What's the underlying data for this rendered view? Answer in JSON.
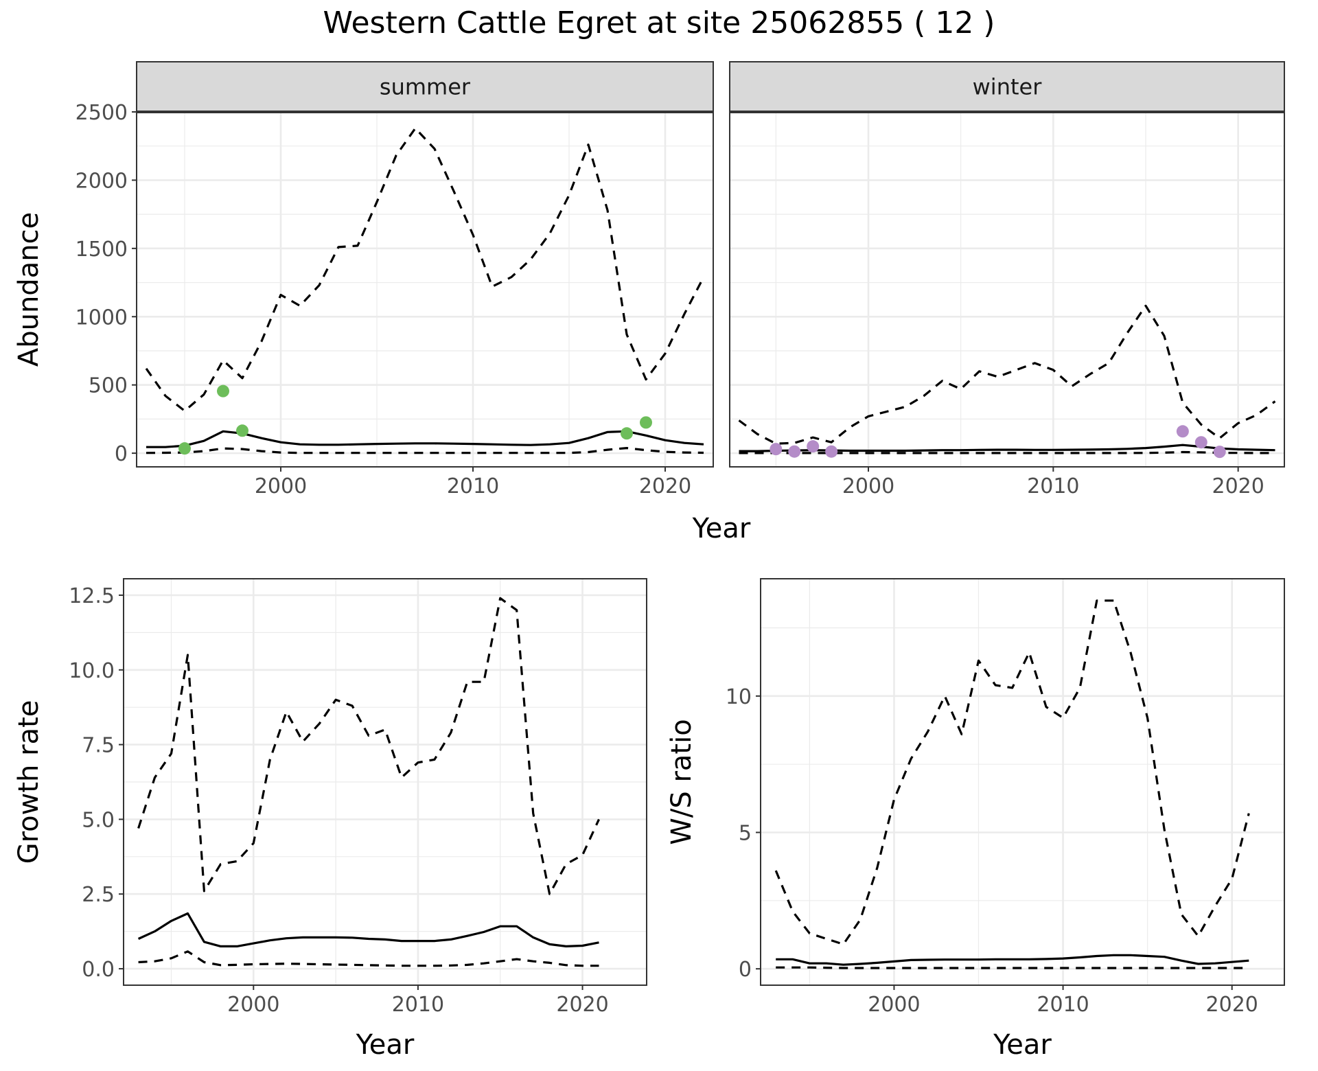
{
  "figure": {
    "title": "Western Cattle Egret at site 25062855 ( 12 )",
    "x_title_top": "Year"
  },
  "colors": {
    "summer_points": "#6dbd5a",
    "winter_points": "#b48cc8",
    "line": "#000000",
    "strip_bg": "#d9d9d9",
    "grid": "#ebebeb"
  },
  "chart_data": [
    {
      "type": "line",
      "panel": "summer",
      "strip_label": "summer",
      "ylabel": "Abundance",
      "xlim": [
        1992.5,
        2022.5
      ],
      "ylim": [
        -100,
        2500
      ],
      "xticks": [
        2000,
        2010,
        2020
      ],
      "yticks": [
        0,
        500,
        1000,
        1500,
        2000,
        2500
      ],
      "grid": true,
      "series": [
        {
          "style": "solid",
          "x": [
            1993,
            1994,
            1995,
            1996,
            1997,
            1998,
            1999,
            2000,
            2001,
            2002,
            2003,
            2004,
            2005,
            2006,
            2007,
            2008,
            2009,
            2010,
            2011,
            2012,
            2013,
            2014,
            2015,
            2016,
            2017,
            2018,
            2019,
            2020,
            2021,
            2022
          ],
          "y": [
            45,
            45,
            55,
            90,
            160,
            145,
            110,
            80,
            65,
            62,
            62,
            65,
            68,
            70,
            72,
            72,
            70,
            68,
            65,
            62,
            60,
            65,
            75,
            110,
            155,
            160,
            130,
            95,
            75,
            65
          ]
        },
        {
          "style": "dashed",
          "x": [
            1993,
            1994,
            1995,
            1996,
            1997,
            1998,
            1999,
            2000,
            2001,
            2002,
            2003,
            2004,
            2005,
            2006,
            2007,
            2008,
            2009,
            2010,
            2011,
            2012,
            2013,
            2014,
            2015,
            2016,
            2017,
            2018,
            2019,
            2020,
            2021,
            2022
          ],
          "y": [
            620,
            420,
            310,
            430,
            680,
            550,
            820,
            1160,
            1080,
            1230,
            1510,
            1520,
            1840,
            2180,
            2380,
            2230,
            1920,
            1600,
            1220,
            1290,
            1420,
            1610,
            1890,
            2260,
            1780,
            870,
            540,
            730,
            1020,
            1290
          ]
        },
        {
          "style": "dashed",
          "x": [
            1993,
            1994,
            1995,
            1996,
            1997,
            1998,
            1999,
            2000,
            2001,
            2002,
            2003,
            2004,
            2005,
            2006,
            2007,
            2008,
            2009,
            2010,
            2011,
            2012,
            2013,
            2014,
            2015,
            2016,
            2017,
            2018,
            2019,
            2020,
            2021,
            2022
          ],
          "y": [
            2,
            3,
            5,
            15,
            35,
            30,
            15,
            5,
            2,
            2,
            2,
            2,
            2,
            2,
            2,
            2,
            2,
            2,
            2,
            2,
            2,
            2,
            2,
            8,
            25,
            38,
            22,
            10,
            5,
            3
          ]
        }
      ],
      "points": {
        "x": [
          1995,
          1997,
          1998,
          2018,
          2019
        ],
        "y": [
          35,
          455,
          165,
          145,
          225
        ]
      }
    },
    {
      "type": "line",
      "panel": "winter",
      "strip_label": "winter",
      "xlim": [
        1992.5,
        2022.5
      ],
      "ylim": [
        -100,
        2500
      ],
      "xticks": [
        2000,
        2010,
        2020
      ],
      "yticks": [
        0,
        500,
        1000,
        1500,
        2000,
        2500
      ],
      "grid": true,
      "series": [
        {
          "style": "solid",
          "x": [
            1993,
            1994,
            1995,
            1996,
            1997,
            1998,
            1999,
            2000,
            2001,
            2002,
            2003,
            2004,
            2005,
            2006,
            2007,
            2008,
            2009,
            2010,
            2011,
            2012,
            2013,
            2014,
            2015,
            2016,
            2017,
            2018,
            2019,
            2020,
            2021,
            2022
          ],
          "y": [
            15,
            15,
            18,
            20,
            22,
            20,
            18,
            18,
            18,
            18,
            20,
            22,
            22,
            24,
            25,
            25,
            24,
            24,
            25,
            26,
            28,
            32,
            38,
            48,
            60,
            48,
            35,
            28,
            25,
            22
          ]
        },
        {
          "style": "dashed",
          "x": [
            1993,
            1994,
            1995,
            1996,
            1997,
            1998,
            1999,
            2000,
            2001,
            2002,
            2003,
            2004,
            2005,
            2006,
            2007,
            2008,
            2009,
            2010,
            2011,
            2012,
            2013,
            2014,
            2015,
            2016,
            2017,
            2018,
            2019,
            2020,
            2021,
            2022
          ],
          "y": [
            240,
            140,
            70,
            75,
            115,
            80,
            190,
            270,
            305,
            340,
            420,
            530,
            470,
            600,
            560,
            610,
            660,
            610,
            490,
            580,
            660,
            880,
            1080,
            860,
            370,
            210,
            110,
            220,
            280,
            380
          ]
        },
        {
          "style": "dashed",
          "x": [
            1993,
            1994,
            1995,
            1996,
            1997,
            1998,
            1999,
            2000,
            2001,
            2002,
            2003,
            2004,
            2005,
            2006,
            2007,
            2008,
            2009,
            2010,
            2011,
            2012,
            2013,
            2014,
            2015,
            2016,
            2017,
            2018,
            2019,
            2020,
            2021,
            2022
          ],
          "y": [
            1,
            1,
            1,
            1,
            1,
            1,
            1,
            1,
            1,
            1,
            1,
            1,
            1,
            1,
            1,
            1,
            1,
            1,
            1,
            1,
            1,
            1,
            2,
            4,
            8,
            6,
            3,
            2,
            1,
            1
          ]
        }
      ],
      "points": {
        "x": [
          1995,
          1996,
          1997,
          1998,
          2017,
          2018,
          2019
        ],
        "y": [
          30,
          12,
          50,
          12,
          160,
          80,
          10
        ]
      }
    },
    {
      "type": "line",
      "panel": "growth",
      "xlabel": "Year",
      "ylabel": "Growth rate",
      "xlim": [
        1992.1,
        2023.9
      ],
      "ylim": [
        -0.55,
        13.05
      ],
      "xticks": [
        2000,
        2010,
        2020
      ],
      "yticks": [
        0.0,
        2.5,
        5.0,
        7.5,
        10.0,
        12.5
      ],
      "ytick_labels": [
        "0.0",
        "2.5",
        "5.0",
        "7.5",
        "10.0",
        "12.5"
      ],
      "grid": true,
      "series": [
        {
          "style": "solid",
          "x": [
            1993,
            1994,
            1995,
            1996,
            1997,
            1998,
            1999,
            2000,
            2001,
            2002,
            2003,
            2004,
            2005,
            2006,
            2007,
            2008,
            2009,
            2010,
            2011,
            2012,
            2013,
            2014,
            2015,
            2016,
            2017,
            2018,
            2019,
            2020,
            2021
          ],
          "y": [
            1.0,
            1.25,
            1.6,
            1.85,
            0.9,
            0.75,
            0.75,
            0.85,
            0.95,
            1.02,
            1.05,
            1.05,
            1.05,
            1.04,
            1.0,
            0.98,
            0.93,
            0.93,
            0.93,
            0.98,
            1.1,
            1.23,
            1.42,
            1.42,
            1.05,
            0.82,
            0.75,
            0.77,
            0.88
          ]
        },
        {
          "style": "dashed",
          "x": [
            1993,
            1994,
            1995,
            1996,
            1997,
            1998,
            1999,
            2000,
            2001,
            2002,
            2003,
            2004,
            2005,
            2006,
            2007,
            2008,
            2009,
            2010,
            2011,
            2012,
            2013,
            2014,
            2015,
            2016,
            2017,
            2018,
            2019,
            2020,
            2021
          ],
          "y": [
            4.7,
            6.4,
            7.2,
            10.5,
            2.6,
            3.5,
            3.6,
            4.2,
            7.0,
            8.6,
            7.6,
            8.2,
            9.0,
            8.8,
            7.8,
            8.0,
            6.4,
            6.9,
            7.0,
            7.9,
            9.6,
            9.6,
            12.4,
            12.0,
            5.2,
            2.5,
            3.5,
            3.8,
            5.0
          ]
        },
        {
          "style": "dashed",
          "x": [
            1993,
            1994,
            1995,
            1996,
            1997,
            1998,
            1999,
            2000,
            2001,
            2002,
            2003,
            2004,
            2005,
            2006,
            2007,
            2008,
            2009,
            2010,
            2011,
            2012,
            2013,
            2014,
            2015,
            2016,
            2017,
            2018,
            2019,
            2020,
            2021
          ],
          "y": [
            0.22,
            0.25,
            0.35,
            0.58,
            0.22,
            0.12,
            0.13,
            0.15,
            0.16,
            0.17,
            0.16,
            0.15,
            0.14,
            0.13,
            0.12,
            0.11,
            0.1,
            0.1,
            0.1,
            0.11,
            0.13,
            0.18,
            0.25,
            0.32,
            0.25,
            0.2,
            0.12,
            0.1,
            0.1
          ]
        }
      ]
    },
    {
      "type": "line",
      "panel": "ratio",
      "xlabel": "Year",
      "ylabel": "W/S ratio",
      "xlim": [
        1992.1,
        2023.1
      ],
      "ylim": [
        -0.6,
        14.3
      ],
      "xticks": [
        2000,
        2010,
        2020
      ],
      "yticks": [
        0,
        5,
        10
      ],
      "grid": true,
      "series": [
        {
          "style": "solid",
          "x": [
            1993,
            1994,
            1995,
            1996,
            1997,
            1998,
            1999,
            2000,
            2001,
            2002,
            2003,
            2004,
            2005,
            2006,
            2007,
            2008,
            2009,
            2010,
            2011,
            2012,
            2013,
            2014,
            2015,
            2016,
            2017,
            2018,
            2019,
            2020,
            2021
          ],
          "y": [
            0.35,
            0.35,
            0.2,
            0.2,
            0.15,
            0.18,
            0.22,
            0.27,
            0.32,
            0.33,
            0.34,
            0.34,
            0.34,
            0.35,
            0.35,
            0.35,
            0.36,
            0.38,
            0.42,
            0.47,
            0.5,
            0.5,
            0.47,
            0.44,
            0.3,
            0.18,
            0.2,
            0.25,
            0.3
          ]
        },
        {
          "style": "dashed",
          "x": [
            1993,
            1994,
            1995,
            1996,
            1997,
            1998,
            1999,
            2000,
            2001,
            2002,
            2003,
            2004,
            2005,
            2006,
            2007,
            2008,
            2009,
            2010,
            2011,
            2012,
            2013,
            2014,
            2015,
            2016,
            2017,
            2018,
            2019,
            2020,
            2021
          ],
          "y": [
            3.6,
            2.1,
            1.3,
            1.1,
            0.9,
            1.8,
            3.7,
            6.2,
            7.7,
            8.7,
            10.0,
            8.6,
            11.3,
            10.4,
            10.3,
            11.6,
            9.6,
            9.2,
            10.3,
            13.5,
            13.5,
            11.6,
            9.2,
            5.1,
            2.0,
            1.2,
            2.3,
            3.3,
            5.7
          ]
        },
        {
          "style": "dashed",
          "x": [
            1993,
            1994,
            1995,
            1996,
            1997,
            1998,
            1999,
            2000,
            2001,
            2002,
            2003,
            2004,
            2005,
            2006,
            2007,
            2008,
            2009,
            2010,
            2011,
            2012,
            2013,
            2014,
            2015,
            2016,
            2017,
            2018,
            2019,
            2020,
            2021
          ],
          "y": [
            0.05,
            0.05,
            0.05,
            0.04,
            0.03,
            0.03,
            0.03,
            0.03,
            0.03,
            0.03,
            0.03,
            0.03,
            0.03,
            0.03,
            0.03,
            0.03,
            0.03,
            0.03,
            0.03,
            0.03,
            0.03,
            0.03,
            0.03,
            0.03,
            0.03,
            0.03,
            0.03,
            0.03,
            0.03
          ]
        }
      ]
    }
  ]
}
